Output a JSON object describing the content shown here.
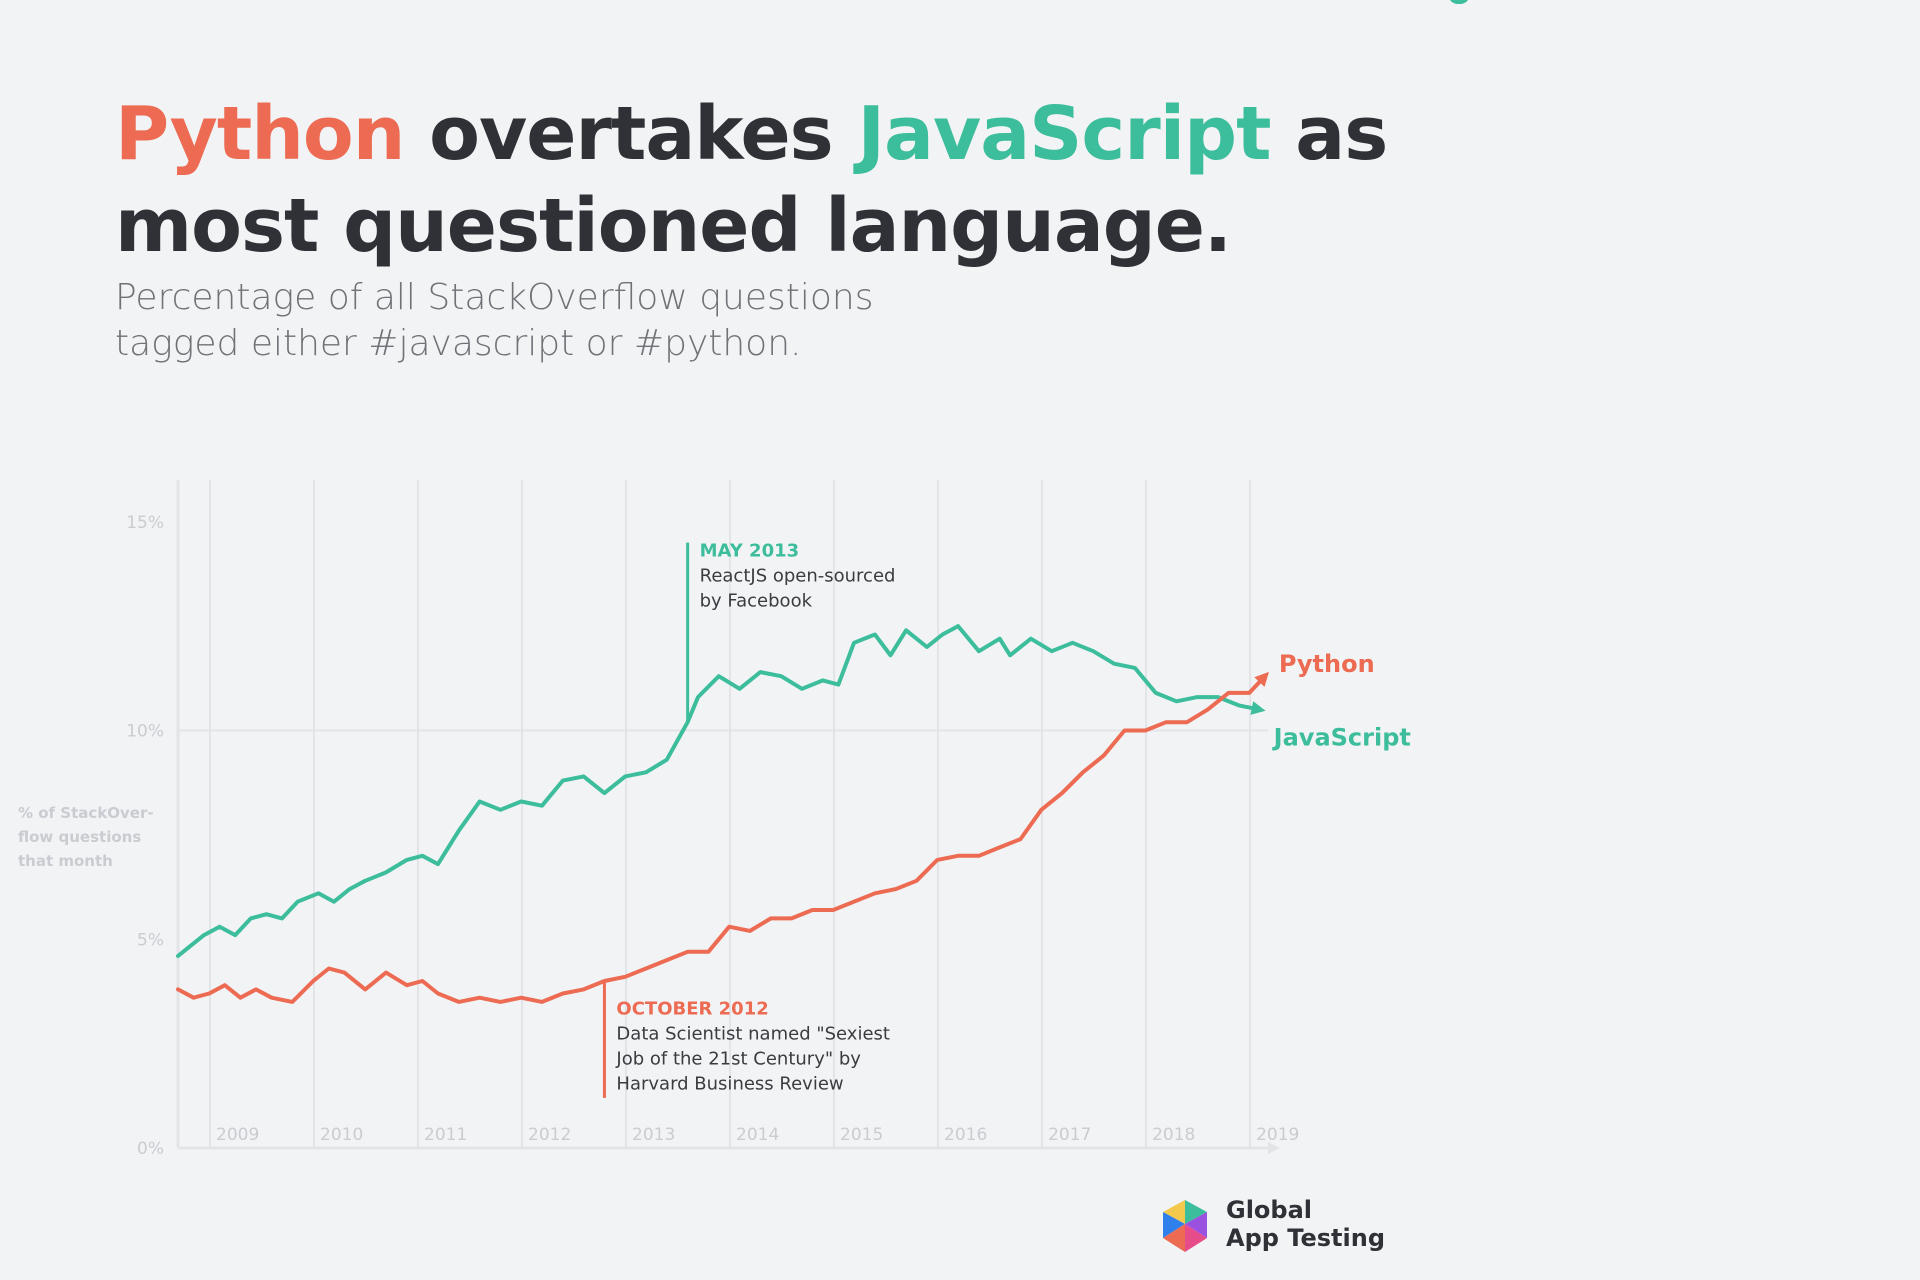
{
  "header": {
    "title_part1": "Python",
    "title_part2": " overtakes ",
    "title_part3": "JavaScript",
    "title_part4": " as",
    "title_line2": "most questioned language.",
    "subtitle_line1": "Percentage of all StackOverflow questions",
    "subtitle_line2": "tagged either #javascript or #python."
  },
  "colors": {
    "python": "#ec6b52",
    "javascript": "#3cbd9b",
    "text": "#2f3136",
    "grid": "#e2e4e7"
  },
  "chart_data": {
    "type": "line",
    "title": "",
    "ylabel_lines": [
      "% of StackOver-",
      "flow questions",
      "that month"
    ],
    "xlabel": "",
    "xlim": [
      2008.5,
      2019.0
    ],
    "ylim": [
      0,
      16
    ],
    "yticks": [
      0,
      5,
      10,
      15
    ],
    "ytick_labels": [
      "0%",
      "5%",
      "10%",
      "15%"
    ],
    "xticks": [
      2009,
      2010,
      2011,
      2012,
      2013,
      2014,
      2015,
      2016,
      2017,
      2018,
      2019
    ],
    "xtick_labels": [
      "2009",
      "2010",
      "2011",
      "2012",
      "2013",
      "2014",
      "2015",
      "2016",
      "2017",
      "2018",
      "2019"
    ],
    "grid": true,
    "series": [
      {
        "name": "JavaScript",
        "color": "#3cbd9b",
        "x": [
          2008.5,
          2008.6,
          2008.75,
          2008.9,
          2009.05,
          2009.2,
          2009.35,
          2009.5,
          2009.65,
          2009.85,
          2010.0,
          2010.15,
          2010.3,
          2010.5,
          2010.7,
          2010.85,
          2011.0,
          2011.2,
          2011.4,
          2011.6,
          2011.8,
          2012.0,
          2012.2,
          2012.4,
          2012.6,
          2012.8,
          2013.0,
          2013.2,
          2013.4,
          2013.5,
          2013.7,
          2013.9,
          2014.1,
          2014.3,
          2014.5,
          2014.7,
          2014.85,
          2015.0,
          2015.2,
          2015.35,
          2015.5,
          2015.7,
          2015.85,
          2016.0,
          2016.2,
          2016.4,
          2016.5,
          2016.7,
          2016.9,
          2017.1,
          2017.3,
          2017.5,
          2017.7,
          2017.9,
          2018.1,
          2018.3,
          2018.5,
          2018.7,
          2018.9
        ],
        "values": [
          4.6,
          4.8,
          5.1,
          5.3,
          5.1,
          5.5,
          5.6,
          5.5,
          5.9,
          6.1,
          5.9,
          6.2,
          6.4,
          6.6,
          6.9,
          7.0,
          6.8,
          7.6,
          8.3,
          8.1,
          8.3,
          8.2,
          8.8,
          8.9,
          8.5,
          8.9,
          9.0,
          9.3,
          10.2,
          10.8,
          11.3,
          11.0,
          11.4,
          11.3,
          11.0,
          11.2,
          11.1,
          12.1,
          12.3,
          11.8,
          12.4,
          12.0,
          12.3,
          12.5,
          11.9,
          12.2,
          11.8,
          12.2,
          11.9,
          12.1,
          11.9,
          11.6,
          11.5,
          10.9,
          10.7,
          10.8,
          10.8,
          10.6,
          10.5
        ],
        "end_label": "JavaScript"
      },
      {
        "name": "Python",
        "color": "#ec6b52",
        "x": [
          2008.5,
          2008.65,
          2008.8,
          2008.95,
          2009.1,
          2009.25,
          2009.4,
          2009.6,
          2009.8,
          2009.95,
          2010.1,
          2010.3,
          2010.5,
          2010.7,
          2010.85,
          2011.0,
          2011.2,
          2011.4,
          2011.6,
          2011.8,
          2012.0,
          2012.2,
          2012.4,
          2012.6,
          2012.8,
          2013.0,
          2013.2,
          2013.4,
          2013.6,
          2013.8,
          2014.0,
          2014.2,
          2014.4,
          2014.6,
          2014.8,
          2015.0,
          2015.2,
          2015.4,
          2015.6,
          2015.8,
          2016.0,
          2016.2,
          2016.4,
          2016.6,
          2016.8,
          2017.0,
          2017.2,
          2017.4,
          2017.6,
          2017.8,
          2018.0,
          2018.2,
          2018.4,
          2018.6,
          2018.8,
          2018.95
        ],
        "values": [
          3.8,
          3.6,
          3.7,
          3.9,
          3.6,
          3.8,
          3.6,
          3.5,
          4.0,
          4.3,
          4.2,
          3.8,
          4.2,
          3.9,
          4.0,
          3.7,
          3.5,
          3.6,
          3.5,
          3.6,
          3.5,
          3.7,
          3.8,
          4.0,
          4.1,
          4.3,
          4.5,
          4.7,
          4.7,
          5.3,
          5.2,
          5.5,
          5.5,
          5.7,
          5.7,
          5.9,
          6.1,
          6.2,
          6.4,
          6.9,
          7.0,
          7.0,
          7.2,
          7.4,
          8.1,
          8.5,
          9.0,
          9.4,
          10.0,
          10.0,
          10.2,
          10.2,
          10.5,
          10.9,
          10.9,
          11.3
        ],
        "end_label": "Python"
      }
    ],
    "annotations": [
      {
        "series": "JavaScript",
        "x": 2013.4,
        "heading": "MAY 2013",
        "lines": [
          "ReactJS open-sourced",
          "by Facebook"
        ]
      },
      {
        "series": "Python",
        "x": 2012.6,
        "heading": "OCTOBER 2012",
        "lines": [
          "Data Scientist named \"Sexiest",
          "Job of the 21st Century\" by",
          "Harvard Business Review"
        ]
      }
    ]
  },
  "logo": {
    "line1": "Global",
    "line2": "App Testing"
  }
}
